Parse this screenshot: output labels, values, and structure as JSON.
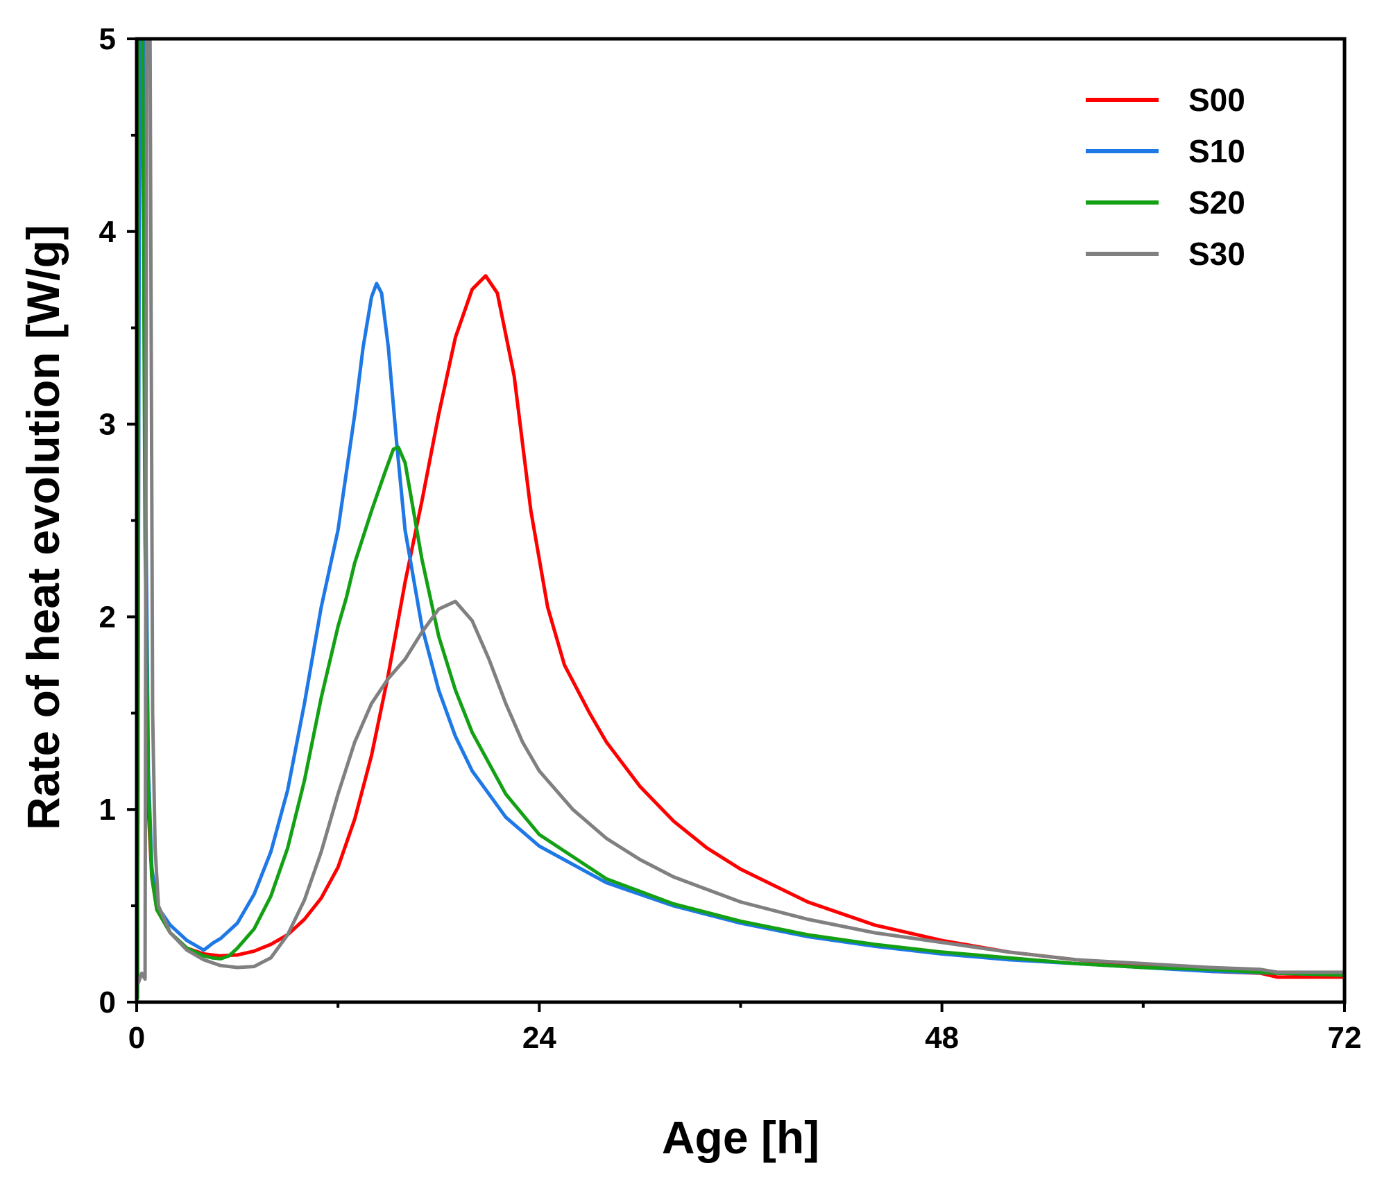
{
  "chart_data": {
    "type": "line",
    "title": "",
    "xlabel": "Age [h]",
    "ylabel": "Rate of heat evolution [W/g]",
    "xlim": [
      0,
      72
    ],
    "ylim": [
      0,
      5
    ],
    "xticks": [
      0,
      24,
      48,
      72
    ],
    "yticks": [
      0,
      1,
      2,
      3,
      4,
      5
    ],
    "x_minor_step": 12,
    "y_minor_step": 0.5,
    "grid": false,
    "legend_position": "top-right",
    "series": [
      {
        "name": "S00",
        "color": "#ff0000",
        "points": [
          [
            0.05,
            0.1
          ],
          [
            0.15,
            4.5
          ],
          [
            0.25,
            5.0
          ],
          [
            0.4,
            5.0
          ],
          [
            0.55,
            2.2
          ],
          [
            0.7,
            1.0
          ],
          [
            0.9,
            0.65
          ],
          [
            1.2,
            0.48
          ],
          [
            2.0,
            0.36
          ],
          [
            3.0,
            0.28
          ],
          [
            4.0,
            0.25
          ],
          [
            5.0,
            0.24
          ],
          [
            6.0,
            0.245
          ],
          [
            7.0,
            0.265
          ],
          [
            8.0,
            0.3
          ],
          [
            9.0,
            0.35
          ],
          [
            10.0,
            0.43
          ],
          [
            11.0,
            0.54
          ],
          [
            12.0,
            0.7
          ],
          [
            13.0,
            0.95
          ],
          [
            14.0,
            1.28
          ],
          [
            15.0,
            1.7
          ],
          [
            16.0,
            2.18
          ],
          [
            17.0,
            2.6
          ],
          [
            18.0,
            3.05
          ],
          [
            19.0,
            3.45
          ],
          [
            20.0,
            3.7
          ],
          [
            20.8,
            3.77
          ],
          [
            21.5,
            3.68
          ],
          [
            22.5,
            3.25
          ],
          [
            23.5,
            2.55
          ],
          [
            24.5,
            2.05
          ],
          [
            25.5,
            1.75
          ],
          [
            27.0,
            1.5
          ],
          [
            28.0,
            1.35
          ],
          [
            30.0,
            1.12
          ],
          [
            32.0,
            0.94
          ],
          [
            34.0,
            0.8
          ],
          [
            36.0,
            0.69
          ],
          [
            40.0,
            0.52
          ],
          [
            44.0,
            0.4
          ],
          [
            48.0,
            0.32
          ],
          [
            52.0,
            0.26
          ],
          [
            56.0,
            0.22
          ],
          [
            60.0,
            0.19
          ],
          [
            64.0,
            0.16
          ],
          [
            67.0,
            0.15
          ],
          [
            68.0,
            0.13
          ],
          [
            70.0,
            0.13
          ],
          [
            72.0,
            0.13
          ]
        ]
      },
      {
        "name": "S10",
        "color": "#1e78e6",
        "points": [
          [
            0.05,
            0.05
          ],
          [
            0.15,
            4.0
          ],
          [
            0.25,
            5.0
          ],
          [
            0.4,
            5.0
          ],
          [
            0.55,
            2.5
          ],
          [
            0.7,
            1.2
          ],
          [
            0.9,
            0.7
          ],
          [
            1.2,
            0.5
          ],
          [
            2.0,
            0.4
          ],
          [
            3.0,
            0.32
          ],
          [
            4.0,
            0.27
          ],
          [
            4.3,
            0.29
          ],
          [
            4.6,
            0.31
          ],
          [
            5.0,
            0.33
          ],
          [
            6.0,
            0.41
          ],
          [
            7.0,
            0.56
          ],
          [
            8.0,
            0.78
          ],
          [
            9.0,
            1.1
          ],
          [
            10.0,
            1.55
          ],
          [
            11.0,
            2.05
          ],
          [
            12.0,
            2.45
          ],
          [
            13.0,
            3.05
          ],
          [
            13.5,
            3.4
          ],
          [
            14.0,
            3.66
          ],
          [
            14.3,
            3.73
          ],
          [
            14.6,
            3.68
          ],
          [
            15.0,
            3.4
          ],
          [
            15.5,
            2.9
          ],
          [
            16.0,
            2.45
          ],
          [
            17.0,
            1.95
          ],
          [
            18.0,
            1.62
          ],
          [
            19.0,
            1.38
          ],
          [
            20.0,
            1.2
          ],
          [
            22.0,
            0.96
          ],
          [
            24.0,
            0.81
          ],
          [
            28.0,
            0.62
          ],
          [
            32.0,
            0.5
          ],
          [
            36.0,
            0.41
          ],
          [
            40.0,
            0.34
          ],
          [
            44.0,
            0.29
          ],
          [
            48.0,
            0.25
          ],
          [
            52.0,
            0.22
          ],
          [
            56.0,
            0.2
          ],
          [
            60.0,
            0.18
          ],
          [
            64.0,
            0.16
          ],
          [
            68.0,
            0.15
          ],
          [
            72.0,
            0.14
          ]
        ]
      },
      {
        "name": "S20",
        "color": "#14a014",
        "points": [
          [
            0.05,
            0.02
          ],
          [
            0.12,
            5.0
          ],
          [
            0.35,
            5.0
          ],
          [
            0.5,
            2.4
          ],
          [
            0.7,
            1.1
          ],
          [
            0.9,
            0.65
          ],
          [
            1.2,
            0.48
          ],
          [
            2.0,
            0.36
          ],
          [
            3.0,
            0.28
          ],
          [
            4.0,
            0.24
          ],
          [
            4.5,
            0.23
          ],
          [
            5.0,
            0.225
          ],
          [
            5.5,
            0.24
          ],
          [
            6.0,
            0.28
          ],
          [
            7.0,
            0.38
          ],
          [
            8.0,
            0.55
          ],
          [
            9.0,
            0.8
          ],
          [
            10.0,
            1.15
          ],
          [
            11.0,
            1.58
          ],
          [
            12.0,
            1.95
          ],
          [
            12.5,
            2.1
          ],
          [
            13.0,
            2.28
          ],
          [
            14.0,
            2.55
          ],
          [
            14.8,
            2.75
          ],
          [
            15.3,
            2.87
          ],
          [
            15.6,
            2.88
          ],
          [
            16.0,
            2.8
          ],
          [
            16.5,
            2.55
          ],
          [
            17.0,
            2.3
          ],
          [
            18.0,
            1.9
          ],
          [
            19.0,
            1.62
          ],
          [
            20.0,
            1.4
          ],
          [
            22.0,
            1.08
          ],
          [
            24.0,
            0.87
          ],
          [
            28.0,
            0.64
          ],
          [
            32.0,
            0.51
          ],
          [
            36.0,
            0.42
          ],
          [
            40.0,
            0.35
          ],
          [
            44.0,
            0.3
          ],
          [
            48.0,
            0.26
          ],
          [
            52.0,
            0.23
          ],
          [
            56.0,
            0.2
          ],
          [
            60.0,
            0.18
          ],
          [
            64.0,
            0.17
          ],
          [
            68.0,
            0.15
          ],
          [
            72.0,
            0.14
          ]
        ]
      },
      {
        "name": "S30",
        "color": "#808080",
        "points": [
          [
            0.1,
            0.1
          ],
          [
            0.3,
            0.15
          ],
          [
            0.5,
            0.12
          ],
          [
            0.6,
            5.0
          ],
          [
            0.8,
            5.0
          ],
          [
            0.95,
            1.5
          ],
          [
            1.1,
            0.8
          ],
          [
            1.3,
            0.5
          ],
          [
            2.0,
            0.36
          ],
          [
            3.0,
            0.27
          ],
          [
            4.0,
            0.22
          ],
          [
            5.0,
            0.19
          ],
          [
            6.0,
            0.18
          ],
          [
            7.0,
            0.185
          ],
          [
            8.0,
            0.23
          ],
          [
            9.0,
            0.35
          ],
          [
            10.0,
            0.53
          ],
          [
            11.0,
            0.78
          ],
          [
            12.0,
            1.08
          ],
          [
            13.0,
            1.35
          ],
          [
            14.0,
            1.55
          ],
          [
            15.0,
            1.68
          ],
          [
            16.0,
            1.78
          ],
          [
            17.0,
            1.92
          ],
          [
            18.0,
            2.04
          ],
          [
            19.0,
            2.08
          ],
          [
            20.0,
            1.98
          ],
          [
            21.0,
            1.78
          ],
          [
            22.0,
            1.55
          ],
          [
            23.0,
            1.35
          ],
          [
            24.0,
            1.2
          ],
          [
            26.0,
            1.0
          ],
          [
            28.0,
            0.85
          ],
          [
            30.0,
            0.74
          ],
          [
            32.0,
            0.65
          ],
          [
            36.0,
            0.52
          ],
          [
            40.0,
            0.43
          ],
          [
            44.0,
            0.36
          ],
          [
            48.0,
            0.31
          ],
          [
            52.0,
            0.26
          ],
          [
            56.0,
            0.22
          ],
          [
            60.0,
            0.2
          ],
          [
            64.0,
            0.18
          ],
          [
            67.0,
            0.17
          ],
          [
            68.0,
            0.155
          ],
          [
            72.0,
            0.155
          ]
        ]
      }
    ]
  }
}
